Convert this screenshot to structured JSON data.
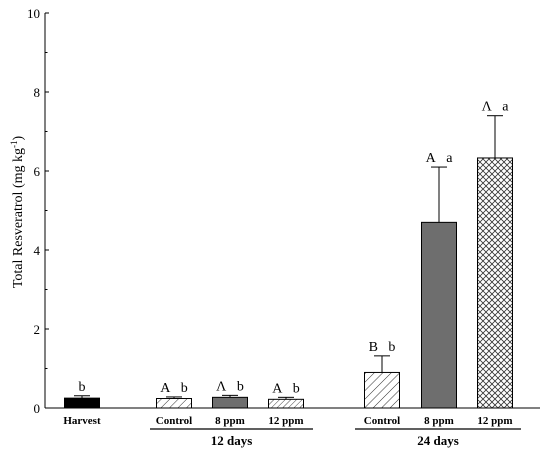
{
  "chart_data": {
    "type": "bar",
    "title": "",
    "xlabel": "",
    "ylabel": "Total Resveratrol (mg kg",
    "ylabel_superscript": "-1",
    "ylabel_suffix": ")",
    "ylim": [
      0,
      10
    ],
    "yticks": [
      "0",
      "2",
      "4",
      "6",
      "8",
      "10"
    ],
    "grid": false,
    "bars": [
      {
        "label": "Harvest",
        "value": 0.25,
        "error": 0.06,
        "letters": "b",
        "fill": "solid-black",
        "group": ""
      },
      {
        "label": "Control",
        "value": 0.24,
        "error": 0.04,
        "letters": "A b",
        "fill": "diagonal-hatch",
        "group": "12 days"
      },
      {
        "label": "8 ppm",
        "value": 0.27,
        "error": 0.05,
        "letters": "Λ b",
        "fill": "solid-gray",
        "group": "12 days"
      },
      {
        "label": "12 ppm",
        "value": 0.22,
        "error": 0.05,
        "letters": "A b",
        "fill": "diagonal-hatch-dense",
        "group": "12 days"
      },
      {
        "label": "Control",
        "value": 0.9,
        "error": 0.42,
        "letters": "B b",
        "fill": "diagonal-hatch",
        "group": "24 days"
      },
      {
        "label": "8 ppm",
        "value": 4.7,
        "error": 1.4,
        "letters": "A a",
        "fill": "solid-gray",
        "group": "24 days"
      },
      {
        "label": "12 ppm",
        "value": 6.33,
        "error": 1.07,
        "letters": "Λ a",
        "fill": "cross-hatch",
        "group": "24 days"
      }
    ],
    "groups": [
      "12 days",
      "24 days"
    ],
    "colors": {
      "black": "#000000",
      "gray": "#6e6e6e",
      "axis": "#000000"
    }
  }
}
